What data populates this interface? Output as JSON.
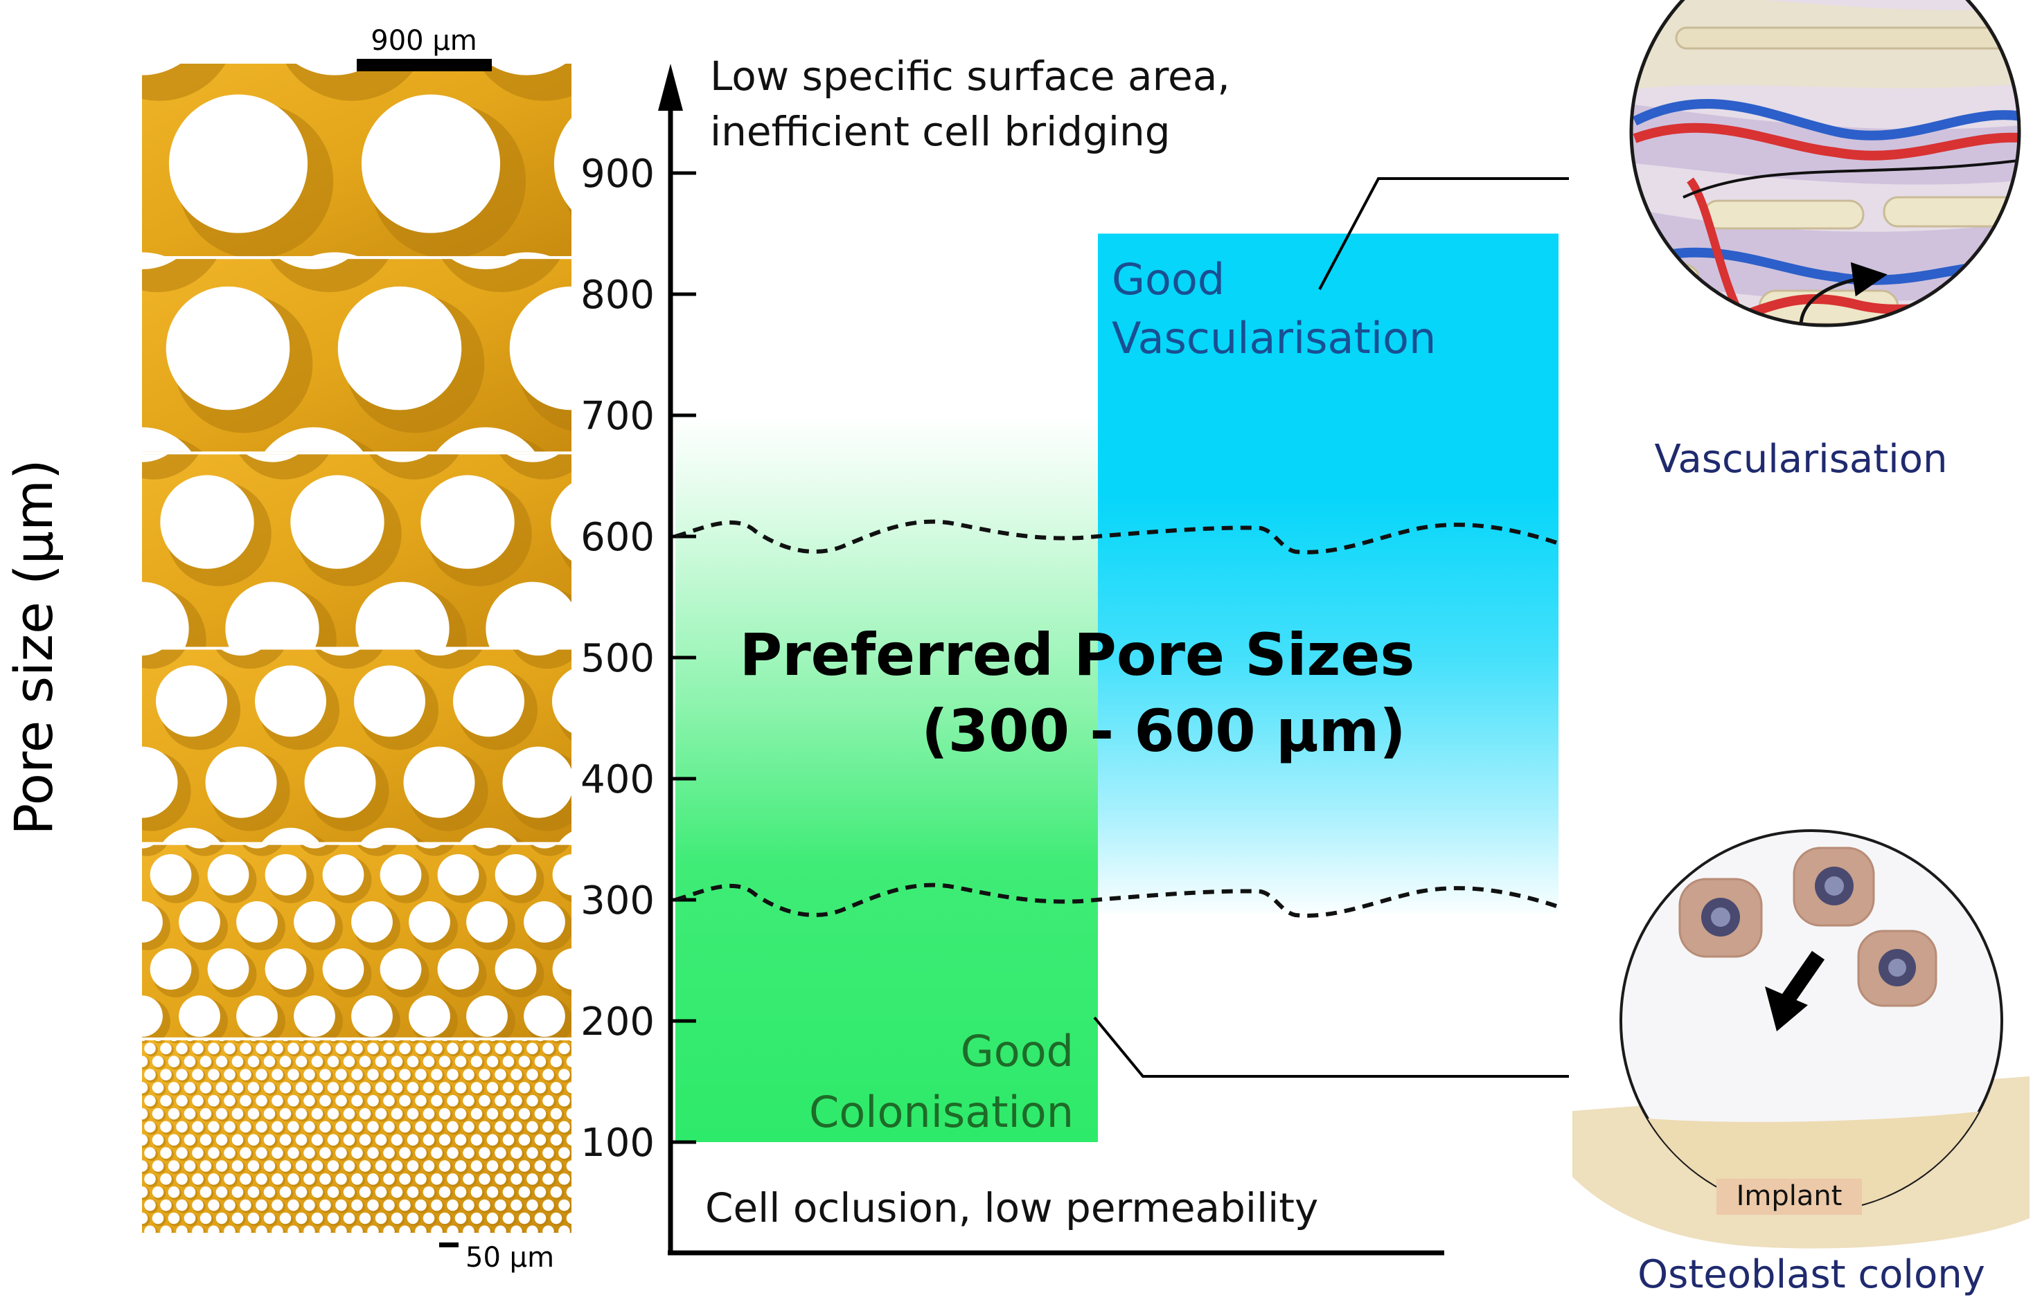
{
  "figure": {
    "y_axis_label": "Pore size (µm)",
    "top_note_line1": "Low specific surface area,",
    "top_note_line2": "inefficient cell bridging",
    "bottom_note": "Cell oclusion, low permeability",
    "preferred_title": "Preferred Pore Sizes",
    "preferred_range": "(300 - 600 µm)",
    "vasc_zone_line1": "Good",
    "vasc_zone_line2": "Vascularisation",
    "colon_zone_line1": "Good",
    "colon_zone_line2": "Colonisation",
    "vasc_inset_caption": "Vascularisation",
    "colony_inset_caption": "Osteoblast colony",
    "implant_label": "Implant",
    "scalebar_top": "900 µm",
    "scalebar_bottom": "50 µm"
  },
  "axis": {
    "ticks": [
      {
        "label": "900",
        "value": 900
      },
      {
        "label": "800",
        "value": 800
      },
      {
        "label": "700",
        "value": 700
      },
      {
        "label": "600",
        "value": 600
      },
      {
        "label": "500",
        "value": 500
      },
      {
        "label": "400",
        "value": 400
      },
      {
        "label": "300",
        "value": 300
      },
      {
        "label": "200",
        "value": 200
      },
      {
        "label": "100",
        "value": 100
      }
    ]
  },
  "zones": {
    "colonisation": {
      "from": 100,
      "to": 700,
      "fade_start": 630
    },
    "vascularisation": {
      "from": 300,
      "to": 850
    }
  },
  "thresholds": [
    {
      "value": 600,
      "label": "600"
    },
    {
      "value": 300,
      "label": "300"
    }
  ],
  "scaffold_panels": [
    {
      "pore": 900
    },
    {
      "pore": 800
    },
    {
      "pore": 600
    },
    {
      "pore": 450
    },
    {
      "pore": 250
    },
    {
      "pore": 50
    }
  ],
  "colors": {
    "scaffold": "#e3a51a",
    "scaffold_dark": "#b37b0c",
    "colonisation_green": "#2eea6a",
    "vascularisation_cyan": "#05d6fa",
    "caption_navy": "#1f2a6e",
    "vasc_text": "#1a4f92",
    "colon_text": "#1e6b28"
  }
}
